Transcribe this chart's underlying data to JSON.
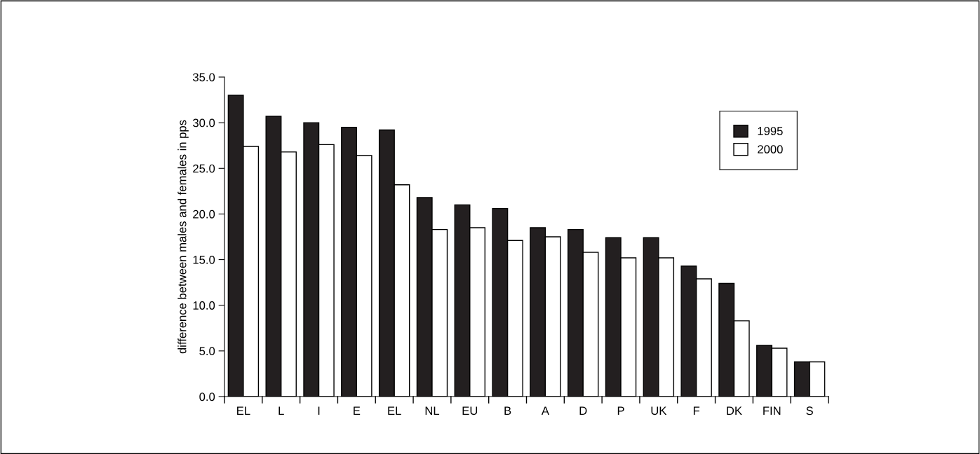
{
  "chart_data": {
    "type": "bar",
    "ylabel": "difference between males and females in pps",
    "categories": [
      "EL",
      "L",
      "I",
      "E",
      "EL",
      "NL",
      "EU",
      "B",
      "A",
      "D",
      "P",
      "UK",
      "F",
      "DK",
      "FIN",
      "S"
    ],
    "series": [
      {
        "name": "1995",
        "color": "#231f20",
        "values": [
          33.0,
          30.7,
          30.0,
          29.5,
          29.2,
          21.8,
          21.0,
          20.6,
          18.5,
          18.3,
          17.4,
          17.4,
          14.3,
          12.4,
          5.6,
          3.8
        ]
      },
      {
        "name": "2000",
        "color": "#ffffff",
        "values": [
          27.4,
          26.8,
          27.6,
          26.4,
          23.2,
          18.3,
          18.5,
          17.1,
          17.5,
          15.8,
          15.2,
          15.2,
          12.9,
          8.3,
          5.3,
          3.8
        ]
      }
    ],
    "ylim": [
      0,
      35
    ],
    "yticks": [
      {
        "value": 0,
        "label": "0.0"
      },
      {
        "value": 5,
        "label": "5.0"
      },
      {
        "value": 10,
        "label": "10.0"
      },
      {
        "value": 15,
        "label": "15.0"
      },
      {
        "value": 20,
        "label": "20.0"
      },
      {
        "value": 25,
        "label": "25.0"
      },
      {
        "value": 30,
        "label": "30.0"
      },
      {
        "value": 35,
        "label": "35.0"
      }
    ],
    "grid": false,
    "legend": "top right"
  }
}
